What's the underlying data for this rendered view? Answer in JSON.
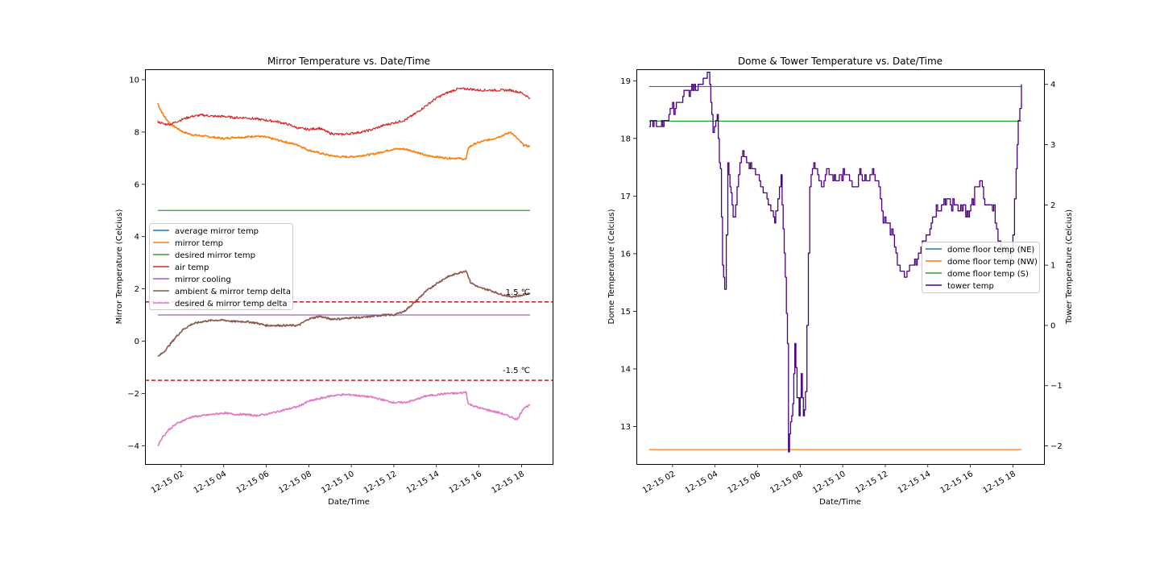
{
  "chart_data": [
    {
      "type": "line",
      "title": "Mirror Temperature vs. Date/Time",
      "xlabel": "Date/Time",
      "ylabel": "Mirror Temperature (Celcius)",
      "xlim": [
        0.3,
        19.5
      ],
      "ylim": [
        -4.7,
        10.4
      ],
      "x_ticks": [
        {
          "x": 2,
          "label": "12-15 02"
        },
        {
          "x": 4,
          "label": "12-15 04"
        },
        {
          "x": 6,
          "label": "12-15 06"
        },
        {
          "x": 8,
          "label": "12-15 08"
        },
        {
          "x": 10,
          "label": "12-15 10"
        },
        {
          "x": 12,
          "label": "12-15 12"
        },
        {
          "x": 14,
          "label": "12-15 14"
        },
        {
          "x": 16,
          "label": "12-15 16"
        },
        {
          "x": 18,
          "label": "12-15 18"
        }
      ],
      "y_ticks": [
        {
          "y": -4,
          "label": "−4"
        },
        {
          "y": -2,
          "label": "−2"
        },
        {
          "y": 0,
          "label": "0"
        },
        {
          "y": 2,
          "label": "2"
        },
        {
          "y": 4,
          "label": "4"
        },
        {
          "y": 6,
          "label": "6"
        },
        {
          "y": 8,
          "label": "8"
        },
        {
          "y": 10,
          "label": "10"
        }
      ],
      "legend": {
        "placement": "center-left",
        "entries": [
          "average mirror temp",
          "mirror temp",
          "desired mirror temp",
          "air temp",
          "mirror cooling",
          "ambient & mirror temp delta",
          "desired & mirror temp delta"
        ]
      },
      "hlines": [
        {
          "y": 1.5,
          "color": "#b22222",
          "style": "dashed",
          "label": "1.5 ℃"
        },
        {
          "y": -1.5,
          "color": "#b22222",
          "style": "dashed",
          "label": "-1.5 ℃"
        }
      ],
      "series": [
        {
          "name": "average mirror temp",
          "color": "#1f77b4",
          "x": [],
          "y": []
        },
        {
          "name": "mirror temp",
          "color": "#ff7f0e",
          "x": [
            0.9,
            1.0,
            1.2,
            1.5,
            1.8,
            2.1,
            2.5,
            3.0,
            3.5,
            4.0,
            4.5,
            5.0,
            5.5,
            6.0,
            6.5,
            7.0,
            7.5,
            8.0,
            8.5,
            9.0,
            9.5,
            10.0,
            10.5,
            11.0,
            11.5,
            12.0,
            12.5,
            13.0,
            13.5,
            14.0,
            14.5,
            15.0,
            15.4,
            15.5,
            15.8,
            16.2,
            16.7,
            17.2,
            17.5,
            17.8,
            18.1,
            18.4
          ],
          "y": [
            9.1,
            8.9,
            8.6,
            8.3,
            8.15,
            8.0,
            7.9,
            7.85,
            7.8,
            7.75,
            7.8,
            7.8,
            7.85,
            7.8,
            7.7,
            7.6,
            7.5,
            7.3,
            7.2,
            7.1,
            7.05,
            7.05,
            7.1,
            7.15,
            7.25,
            7.35,
            7.35,
            7.25,
            7.1,
            7.05,
            7.0,
            7.0,
            6.95,
            7.4,
            7.55,
            7.65,
            7.75,
            7.9,
            8.0,
            7.75,
            7.5,
            7.45
          ]
        },
        {
          "name": "desired mirror temp",
          "color": "#2ca02c",
          "x": [
            0.9,
            18.4
          ],
          "y": [
            5.0,
            5.0
          ]
        },
        {
          "name": "air temp",
          "color": "#d62728",
          "x": [
            0.9,
            1.2,
            1.5,
            1.8,
            2.1,
            2.5,
            3.0,
            3.5,
            4.0,
            4.5,
            5.0,
            5.5,
            6.0,
            6.5,
            7.0,
            7.5,
            8.0,
            8.5,
            9.0,
            9.5,
            10.0,
            10.5,
            11.0,
            11.5,
            12.0,
            12.5,
            13.0,
            13.5,
            14.0,
            14.5,
            15.0,
            15.5,
            16.0,
            16.5,
            17.0,
            17.5,
            18.0,
            18.4
          ],
          "y": [
            8.4,
            8.3,
            8.3,
            8.4,
            8.5,
            8.6,
            8.65,
            8.6,
            8.6,
            8.55,
            8.55,
            8.5,
            8.45,
            8.4,
            8.3,
            8.15,
            8.1,
            8.15,
            7.95,
            7.9,
            7.95,
            8.0,
            8.1,
            8.25,
            8.35,
            8.45,
            8.7,
            9.0,
            9.3,
            9.5,
            9.65,
            9.65,
            9.6,
            9.6,
            9.6,
            9.6,
            9.5,
            9.3
          ]
        },
        {
          "name": "mirror cooling",
          "color": "#9467bd",
          "x": [
            0.9,
            18.4
          ],
          "y": [
            1.0,
            1.0
          ]
        },
        {
          "name": "ambient & mirror temp delta",
          "color": "#8c564b",
          "x": [
            0.9,
            1.2,
            1.5,
            1.8,
            2.1,
            2.5,
            3.0,
            3.5,
            4.0,
            4.5,
            5.0,
            5.5,
            6.0,
            6.5,
            7.0,
            7.5,
            8.0,
            8.5,
            9.0,
            9.5,
            10.0,
            10.5,
            11.0,
            11.5,
            12.0,
            12.5,
            13.0,
            13.5,
            14.0,
            14.5,
            15.0,
            15.4,
            15.6,
            16.0,
            16.5,
            17.0,
            17.5,
            18.0,
            18.4
          ],
          "y": [
            -0.6,
            -0.4,
            -0.1,
            0.2,
            0.45,
            0.65,
            0.75,
            0.8,
            0.8,
            0.75,
            0.75,
            0.7,
            0.6,
            0.6,
            0.6,
            0.6,
            0.85,
            0.95,
            0.85,
            0.85,
            0.9,
            0.9,
            0.95,
            1.0,
            1.0,
            1.15,
            1.5,
            1.9,
            2.2,
            2.45,
            2.6,
            2.7,
            2.25,
            2.05,
            1.95,
            1.8,
            1.7,
            1.75,
            1.85
          ]
        },
        {
          "name": "desired & mirror temp delta",
          "color": "#e377c2",
          "x": [
            0.9,
            1.1,
            1.4,
            1.8,
            2.2,
            2.5,
            3.0,
            3.5,
            4.0,
            4.5,
            5.0,
            5.5,
            6.0,
            6.5,
            7.0,
            7.5,
            8.0,
            8.5,
            9.0,
            9.5,
            10.0,
            10.5,
            11.0,
            11.5,
            12.0,
            12.5,
            13.0,
            13.5,
            14.0,
            14.5,
            15.0,
            15.4,
            15.5,
            16.0,
            16.5,
            17.0,
            17.5,
            17.8,
            18.1,
            18.4
          ],
          "y": [
            -4.0,
            -3.7,
            -3.4,
            -3.15,
            -3.0,
            -2.9,
            -2.85,
            -2.8,
            -2.75,
            -2.8,
            -2.8,
            -2.85,
            -2.8,
            -2.7,
            -2.6,
            -2.5,
            -2.3,
            -2.2,
            -2.1,
            -2.05,
            -2.05,
            -2.1,
            -2.15,
            -2.25,
            -2.35,
            -2.35,
            -2.25,
            -2.1,
            -2.05,
            -2.0,
            -2.0,
            -1.95,
            -2.4,
            -2.55,
            -2.65,
            -2.75,
            -2.9,
            -3.0,
            -2.55,
            -2.45
          ]
        }
      ]
    },
    {
      "type": "line",
      "title": "Dome & Tower Temperature vs. Date/Time",
      "xlabel": "Date/Time",
      "ylabel": "Dome Temperature (Celcius)",
      "ylabel_right": "Tower Temperature (Celcius)",
      "xlim": [
        0.3,
        19.5
      ],
      "ylim": [
        12.35,
        19.2
      ],
      "ylim_right": [
        -2.3,
        4.25
      ],
      "x_ticks": [
        {
          "x": 2,
          "label": "12-15 02"
        },
        {
          "x": 4,
          "label": "12-15 04"
        },
        {
          "x": 6,
          "label": "12-15 06"
        },
        {
          "x": 8,
          "label": "12-15 08"
        },
        {
          "x": 10,
          "label": "12-15 10"
        },
        {
          "x": 12,
          "label": "12-15 12"
        },
        {
          "x": 14,
          "label": "12-15 14"
        },
        {
          "x": 16,
          "label": "12-15 16"
        },
        {
          "x": 18,
          "label": "12-15 18"
        }
      ],
      "y_ticks": [
        {
          "y": 13,
          "label": "13"
        },
        {
          "y": 14,
          "label": "14"
        },
        {
          "y": 15,
          "label": "15"
        },
        {
          "y": 16,
          "label": "16"
        },
        {
          "y": 17,
          "label": "17"
        },
        {
          "y": 18,
          "label": "18"
        },
        {
          "y": 19,
          "label": "19"
        }
      ],
      "y_ticks_right": [
        {
          "y": -2,
          "label": "−2"
        },
        {
          "y": -1,
          "label": "−1"
        },
        {
          "y": 0,
          "label": "0"
        },
        {
          "y": 1,
          "label": "1"
        },
        {
          "y": 2,
          "label": "2"
        },
        {
          "y": 3,
          "label": "3"
        },
        {
          "y": 4,
          "label": "4"
        }
      ],
      "legend": {
        "placement": "center-right",
        "entries": [
          "dome floor temp (NE)",
          "dome floor temp (NW)",
          "dome floor temp (S)",
          "tower temp"
        ]
      },
      "series": [
        {
          "name": "dome floor temp (NE)",
          "color": "#1f77b4",
          "axis": "left",
          "x": [
            0.9,
            18.4
          ],
          "y": [
            18.9,
            18.9
          ]
        },
        {
          "name": "dome floor temp (NW)",
          "color": "#ff7f0e",
          "axis": "left",
          "x": [
            0.9,
            18.4
          ],
          "y": [
            12.6,
            12.6
          ]
        },
        {
          "name": "dome floor temp (S)",
          "color": "#2ca02c",
          "axis": "left",
          "x": [
            0.9,
            18.4
          ],
          "y": [
            18.3,
            18.3
          ]
        },
        {
          "name": "tower temp",
          "color": "#4b0082",
          "axis": "right",
          "x": [
            0.9,
            1.3,
            1.6,
            2.0,
            2.3,
            2.6,
            2.9,
            3.2,
            3.5,
            3.7,
            3.8,
            3.9,
            4.1,
            4.25,
            4.35,
            4.45,
            4.6,
            4.75,
            4.9,
            5.1,
            5.3,
            5.6,
            5.9,
            6.2,
            6.5,
            6.8,
            6.95,
            7.1,
            7.25,
            7.4,
            7.45,
            7.55,
            7.65,
            7.75,
            7.85,
            7.95,
            8.05,
            8.15,
            8.25,
            8.45,
            8.7,
            9.0,
            9.3,
            9.6,
            9.9,
            10.2,
            10.5,
            10.8,
            11.1,
            11.4,
            11.7,
            11.9,
            12.1,
            12.3,
            12.5,
            12.7,
            12.9,
            13.2,
            13.5,
            13.8,
            14.1,
            14.4,
            14.7,
            15.0,
            15.3,
            15.6,
            15.9,
            16.2,
            16.5,
            16.8,
            17.1,
            17.3,
            17.5,
            17.7,
            17.85,
            18.0,
            18.15,
            18.25,
            18.4
          ],
          "y": [
            3.3,
            3.3,
            3.4,
            3.6,
            3.7,
            3.85,
            3.9,
            3.95,
            4.1,
            4.2,
            3.8,
            3.3,
            3.5,
            2.5,
            1.0,
            0.6,
            2.6,
            2.2,
            1.8,
            2.5,
            2.8,
            2.7,
            2.5,
            2.3,
            2.0,
            1.8,
            2.1,
            2.4,
            1.2,
            -0.3,
            -2.0,
            -1.6,
            -1.3,
            -0.3,
            -1.1,
            -1.4,
            -0.8,
            -1.4,
            -1.2,
            2.4,
            2.7,
            2.3,
            2.6,
            2.4,
            2.5,
            2.6,
            2.2,
            2.5,
            2.4,
            2.5,
            2.3,
            1.8,
            1.7,
            1.5,
            1.2,
            0.9,
            0.8,
            1.0,
            1.1,
            1.4,
            1.6,
            1.9,
            2.0,
            2.1,
            1.9,
            2.0,
            1.8,
            2.2,
            2.3,
            1.9,
            1.9,
            1.4,
            1.2,
            1.3,
            1.1,
            1.5,
            2.6,
            3.3,
            4.0
          ]
        }
      ]
    }
  ]
}
